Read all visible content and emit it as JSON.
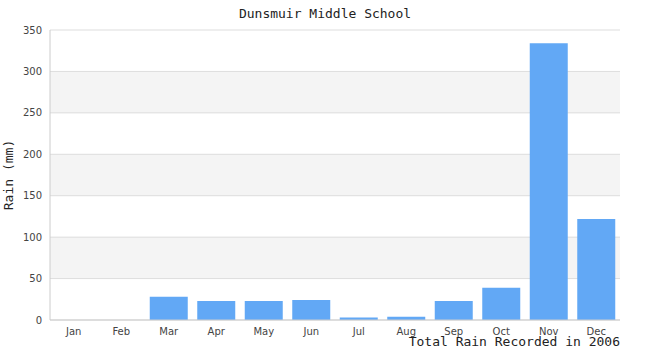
{
  "chart_data": {
    "type": "bar",
    "title": "Dunsmuir Middle School",
    "x_label": "Total Rain Recorded in 2006",
    "y_label": "Rain (mm)",
    "categories": [
      "Jan",
      "Feb",
      "Mar",
      "Apr",
      "May",
      "Jun",
      "Jul",
      "Aug",
      "Sep",
      "Oct",
      "Nov",
      "Dec"
    ],
    "values": [
      0,
      0,
      28,
      23,
      23,
      24,
      3,
      4,
      23,
      39,
      334,
      122
    ],
    "color": "#62a8f5",
    "ylim": [
      0,
      350
    ],
    "yticks": [
      0,
      50,
      100,
      150,
      200,
      250,
      300,
      350
    ],
    "grid": true
  }
}
